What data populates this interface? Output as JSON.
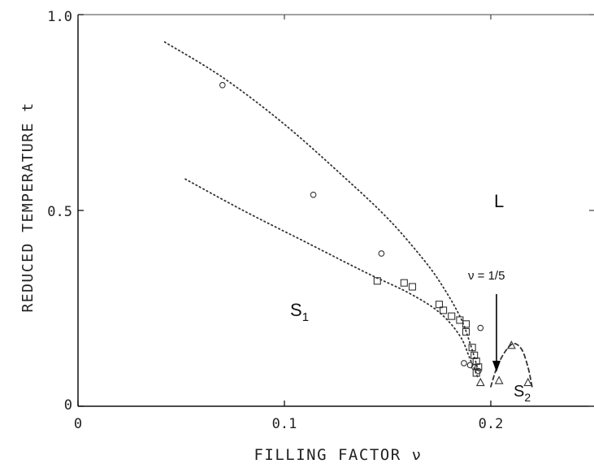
{
  "chart_data": {
    "type": "scatter",
    "title": "",
    "xlabel": "FILLING FACTOR ν",
    "ylabel": "REDUCED TEMPERATURE t",
    "xlim": [
      0,
      0.25
    ],
    "ylim": [
      0,
      1.0
    ],
    "x_ticks": [
      0,
      0.1,
      0.2
    ],
    "x_tick_labels": [
      "0",
      "0.1",
      "0.2"
    ],
    "y_ticks": [
      0,
      0.5,
      1.0
    ],
    "y_tick_labels": [
      "0",
      "0.5",
      "1.0"
    ],
    "grid": false,
    "series": [
      {
        "marker": "circle",
        "points": [
          [
            0.07,
            0.82
          ],
          [
            0.114,
            0.54
          ],
          [
            0.147,
            0.39
          ],
          [
            0.195,
            0.2
          ],
          [
            0.187,
            0.11
          ],
          [
            0.19,
            0.105
          ],
          [
            0.192,
            0.1
          ],
          [
            0.194,
            0.09
          ]
        ]
      },
      {
        "marker": "square",
        "points": [
          [
            0.145,
            0.32
          ],
          [
            0.158,
            0.315
          ],
          [
            0.162,
            0.305
          ],
          [
            0.175,
            0.26
          ],
          [
            0.177,
            0.245
          ],
          [
            0.181,
            0.23
          ],
          [
            0.185,
            0.22
          ],
          [
            0.188,
            0.21
          ],
          [
            0.188,
            0.19
          ],
          [
            0.191,
            0.15
          ],
          [
            0.192,
            0.13
          ],
          [
            0.193,
            0.115
          ],
          [
            0.194,
            0.1
          ],
          [
            0.193,
            0.085
          ]
        ]
      },
      {
        "marker": "triangle",
        "points": [
          [
            0.195,
            0.06
          ],
          [
            0.204,
            0.065
          ],
          [
            0.21,
            0.155
          ],
          [
            0.218,
            0.06
          ]
        ]
      }
    ],
    "curves": [
      {
        "style": "dotted",
        "points": [
          [
            0.042,
            0.93
          ],
          [
            0.07,
            0.84
          ],
          [
            0.1,
            0.72
          ],
          [
            0.13,
            0.58
          ],
          [
            0.15,
            0.48
          ],
          [
            0.165,
            0.39
          ],
          [
            0.175,
            0.32
          ],
          [
            0.185,
            0.23
          ],
          [
            0.19,
            0.16
          ],
          [
            0.194,
            0.09
          ]
        ]
      },
      {
        "style": "dotted",
        "points": [
          [
            0.052,
            0.58
          ],
          [
            0.08,
            0.5
          ],
          [
            0.11,
            0.42
          ],
          [
            0.14,
            0.34
          ],
          [
            0.16,
            0.29
          ],
          [
            0.175,
            0.24
          ],
          [
            0.185,
            0.18
          ],
          [
            0.19,
            0.12
          ],
          [
            0.194,
            0.07
          ]
        ]
      },
      {
        "style": "dashed",
        "points": [
          [
            0.2,
            0.05
          ],
          [
            0.203,
            0.1
          ],
          [
            0.207,
            0.14
          ],
          [
            0.211,
            0.16
          ],
          [
            0.215,
            0.145
          ],
          [
            0.218,
            0.1
          ],
          [
            0.22,
            0.05
          ]
        ]
      }
    ],
    "annotations": {
      "L": "L",
      "S1_main": "S",
      "S1_sub": "1",
      "S2_main": "S",
      "S2_sub": "2",
      "nu_label": "ν = 1/5"
    }
  }
}
